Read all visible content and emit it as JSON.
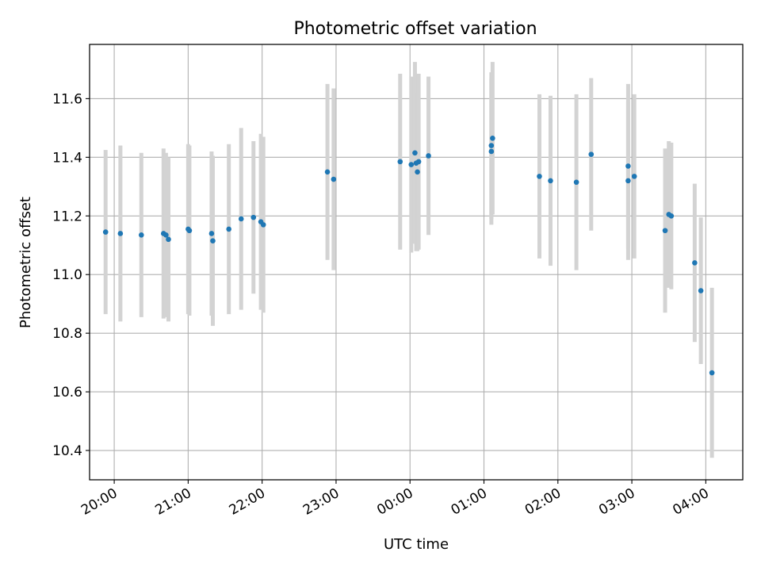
{
  "chart_data": {
    "type": "scatter",
    "title": "Photometric offset variation",
    "xlabel": "UTC time",
    "ylabel": "Photometric offset",
    "xlim": [
      "19:40",
      "04:30"
    ],
    "ylim": [
      10.3,
      11.785
    ],
    "grid": true,
    "x_ticks": [
      "20:00",
      "21:00",
      "22:00",
      "23:00",
      "00:00",
      "01:00",
      "02:00",
      "03:00",
      "04:00"
    ],
    "y_ticks": [
      "10.4",
      "10.6",
      "10.8",
      "11.0",
      "11.2",
      "11.4",
      "11.6"
    ],
    "colors": {
      "marker": "#1f77b4",
      "errorbar": "#d3d3d3",
      "grid": "#b0b0b0"
    },
    "series": [
      {
        "points": [
          {
            "x": "19:53",
            "y": 11.145,
            "err": 0.28
          },
          {
            "x": "20:05",
            "y": 11.14,
            "err": 0.3
          },
          {
            "x": "20:22",
            "y": 11.135,
            "err": 0.28
          },
          {
            "x": "20:40",
            "y": 11.14,
            "err": 0.29
          },
          {
            "x": "20:42",
            "y": 11.135,
            "err": 0.28
          },
          {
            "x": "20:44",
            "y": 11.12,
            "err": 0.28
          },
          {
            "x": "21:00",
            "y": 11.155,
            "err": 0.29
          },
          {
            "x": "21:01",
            "y": 11.15,
            "err": 0.29
          },
          {
            "x": "21:19",
            "y": 11.14,
            "err": 0.28
          },
          {
            "x": "21:20",
            "y": 11.115,
            "err": 0.29
          },
          {
            "x": "21:33",
            "y": 11.155,
            "err": 0.29
          },
          {
            "x": "21:43",
            "y": 11.19,
            "err": 0.31
          },
          {
            "x": "21:53",
            "y": 11.195,
            "err": 0.26
          },
          {
            "x": "21:59",
            "y": 11.18,
            "err": 0.3
          },
          {
            "x": "22:01",
            "y": 11.17,
            "err": 0.3
          },
          {
            "x": "22:53",
            "y": 11.35,
            "err": 0.3
          },
          {
            "x": "22:58",
            "y": 11.325,
            "err": 0.31
          },
          {
            "x": "23:52",
            "y": 11.385,
            "err": 0.3
          },
          {
            "x": "00:01",
            "y": 11.375,
            "err": 0.3
          },
          {
            "x": "00:04",
            "y": 11.415,
            "err": 0.31
          },
          {
            "x": "00:05",
            "y": 11.38,
            "err": 0.3
          },
          {
            "x": "00:06",
            "y": 11.35,
            "err": 0.27
          },
          {
            "x": "00:07",
            "y": 11.385,
            "err": 0.3
          },
          {
            "x": "00:15",
            "y": 11.405,
            "err": 0.27
          },
          {
            "x": "01:06",
            "y": 11.42,
            "err": 0.25
          },
          {
            "x": "01:06",
            "y": 11.44,
            "err": 0.25
          },
          {
            "x": "01:07",
            "y": 11.465,
            "err": 0.26
          },
          {
            "x": "01:45",
            "y": 11.335,
            "err": 0.28
          },
          {
            "x": "01:54",
            "y": 11.32,
            "err": 0.29
          },
          {
            "x": "02:15",
            "y": 11.315,
            "err": 0.3
          },
          {
            "x": "02:27",
            "y": 11.41,
            "err": 0.26
          },
          {
            "x": "02:57",
            "y": 11.32,
            "err": 0.27
          },
          {
            "x": "02:57",
            "y": 11.37,
            "err": 0.28
          },
          {
            "x": "03:02",
            "y": 11.335,
            "err": 0.28
          },
          {
            "x": "03:27",
            "y": 11.15,
            "err": 0.28
          },
          {
            "x": "03:30",
            "y": 11.205,
            "err": 0.25
          },
          {
            "x": "03:32",
            "y": 11.2,
            "err": 0.25
          },
          {
            "x": "03:51",
            "y": 11.04,
            "err": 0.27
          },
          {
            "x": "03:56",
            "y": 10.945,
            "err": 0.25
          },
          {
            "x": "04:05",
            "y": 10.665,
            "err": 0.29
          }
        ]
      }
    ]
  }
}
